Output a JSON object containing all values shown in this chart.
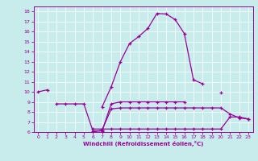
{
  "xlabel": "Windchill (Refroidissement éolien,°C)",
  "bg_color": "#c8ecec",
  "line_color": "#990099",
  "grid_color": "#ffffff",
  "x": [
    0,
    1,
    2,
    3,
    4,
    5,
    6,
    7,
    8,
    9,
    10,
    11,
    12,
    13,
    14,
    15,
    16,
    17,
    18,
    19,
    20,
    21,
    22,
    23
  ],
  "line1": [
    10,
    10.2,
    null,
    null,
    null,
    null,
    null,
    8.5,
    10.5,
    13.0,
    14.8,
    15.5,
    16.3,
    17.8,
    17.75,
    17.2,
    15.8,
    11.2,
    10.8,
    null,
    9.9,
    null,
    null,
    null
  ],
  "line2": [
    null,
    null,
    8.8,
    8.8,
    8.8,
    8.8,
    6.1,
    6.1,
    8.8,
    9.0,
    9.0,
    9.0,
    9.0,
    9.0,
    9.0,
    9.0,
    9.0,
    null,
    null,
    null,
    null,
    null,
    null,
    null
  ],
  "line3": [
    null,
    null,
    null,
    null,
    null,
    null,
    6.0,
    6.2,
    8.3,
    8.4,
    8.4,
    8.4,
    8.4,
    8.4,
    8.4,
    8.4,
    8.4,
    8.4,
    8.4,
    8.4,
    8.4,
    7.8,
    7.4,
    7.3
  ],
  "line4": [
    null,
    null,
    null,
    null,
    null,
    null,
    6.3,
    6.3,
    6.3,
    6.3,
    6.3,
    6.3,
    6.3,
    6.3,
    6.3,
    6.3,
    6.3,
    6.3,
    6.3,
    6.3,
    6.3,
    7.5,
    7.5,
    7.3
  ],
  "ylim": [
    6,
    18.5
  ],
  "xlim": [
    -0.5,
    23.5
  ],
  "yticks": [
    6,
    7,
    8,
    9,
    10,
    11,
    12,
    13,
    14,
    15,
    16,
    17,
    18
  ],
  "xticks": [
    0,
    1,
    2,
    3,
    4,
    5,
    6,
    7,
    8,
    9,
    10,
    11,
    12,
    13,
    14,
    15,
    16,
    17,
    18,
    19,
    20,
    21,
    22,
    23
  ]
}
